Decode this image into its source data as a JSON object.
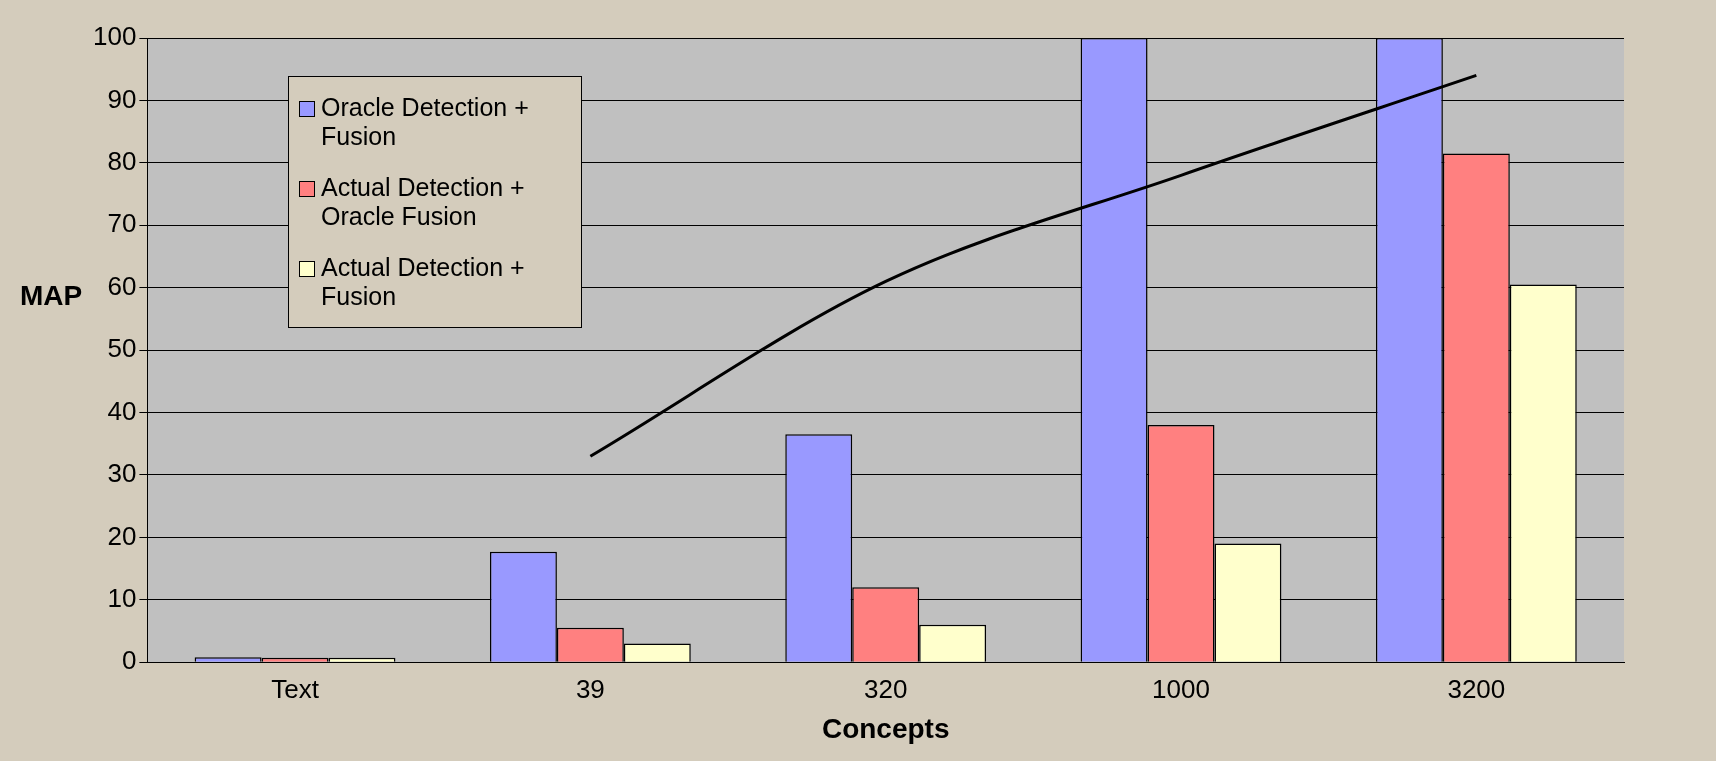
{
  "chart_data": {
    "type": "bar",
    "xlabel": "Concepts",
    "ylabel": "MAP",
    "categories": [
      "Text",
      "39",
      "320",
      "1000",
      "3200"
    ],
    "series": [
      {
        "name": "Oracle Detection + Fusion",
        "color": "#9999ff",
        "values": [
          0.8,
          17.7,
          36.5,
          100,
          100
        ]
      },
      {
        "name": "Actual Detection + Oracle Fusion",
        "color": "#ff8080",
        "values": [
          0.7,
          5.5,
          12,
          38,
          81.5
        ]
      },
      {
        "name": "Actual Detection + Fusion",
        "color": "#ffffcc",
        "values": [
          0.7,
          3,
          6,
          19,
          60.5
        ]
      },
      {
        "type": "line",
        "color": "#000000",
        "values": [
          null,
          33,
          61,
          78,
          94
        ]
      }
    ],
    "ylim": [
      0,
      100
    ],
    "yticks": [
      0,
      10,
      20,
      30,
      40,
      50,
      60,
      70,
      80,
      90,
      100
    ],
    "grid": "y",
    "legend": "top left",
    "marker": "none",
    "line_style": "solid"
  }
}
